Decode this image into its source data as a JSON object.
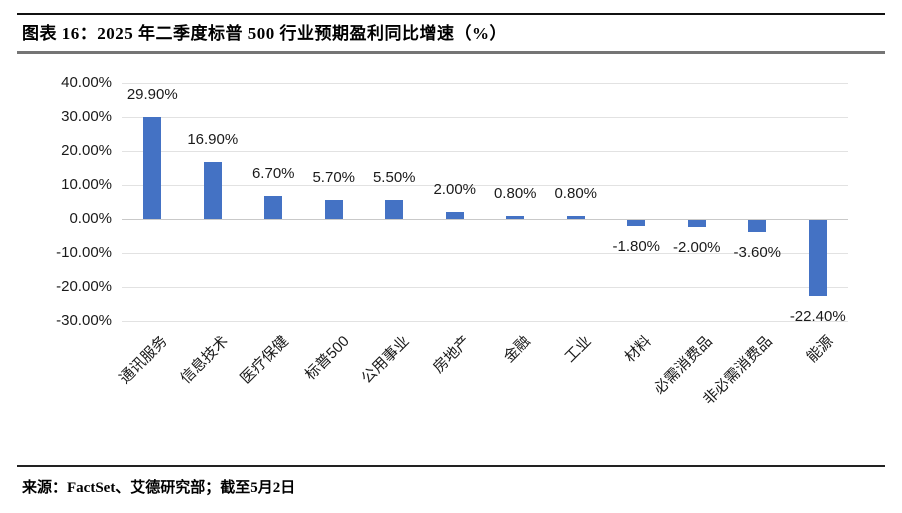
{
  "header": {
    "title": "图表 16：2025 年二季度标普 500 行业预期盈利同比增速（%）"
  },
  "chart_data": {
    "type": "bar",
    "title": "2025 年二季度标普 500 行业预期盈利同比增速（%）",
    "categories": [
      "通讯服务",
      "信息技术",
      "医疗保健",
      "标普500",
      "公用事业",
      "房地产",
      "金融",
      "工业",
      "材料",
      "必需消费品",
      "非必需消费品",
      "能源"
    ],
    "values": [
      29.9,
      16.9,
      6.7,
      5.7,
      5.5,
      2.0,
      0.8,
      0.8,
      -1.8,
      -2.0,
      -3.6,
      -22.4
    ],
    "value_labels": [
      "29.90%",
      "16.90%",
      "6.70%",
      "5.70%",
      "5.50%",
      "2.00%",
      "0.80%",
      "0.80%",
      "-1.80%",
      "-2.00%",
      "-3.60%",
      "-22.40%"
    ],
    "xlabel": "",
    "ylabel": "",
    "ylim": [
      -30,
      40
    ],
    "yticks": [
      40,
      30,
      20,
      10,
      0,
      -10,
      -20,
      -30
    ],
    "ytick_labels": [
      "40.00%",
      "30.00%",
      "20.00%",
      "10.00%",
      "0.00%",
      "-10.00%",
      "-20.00%",
      "-30.00%"
    ],
    "grid": true,
    "legend": false,
    "bar_color": "#4472C4",
    "gridline_color": "#E2E2E2",
    "zero_line_color": "#C9C9C9",
    "label_color": "#1a1a1a"
  },
  "footer": {
    "source": "来源：FactSet、艾德研究部；截至5月2日"
  }
}
